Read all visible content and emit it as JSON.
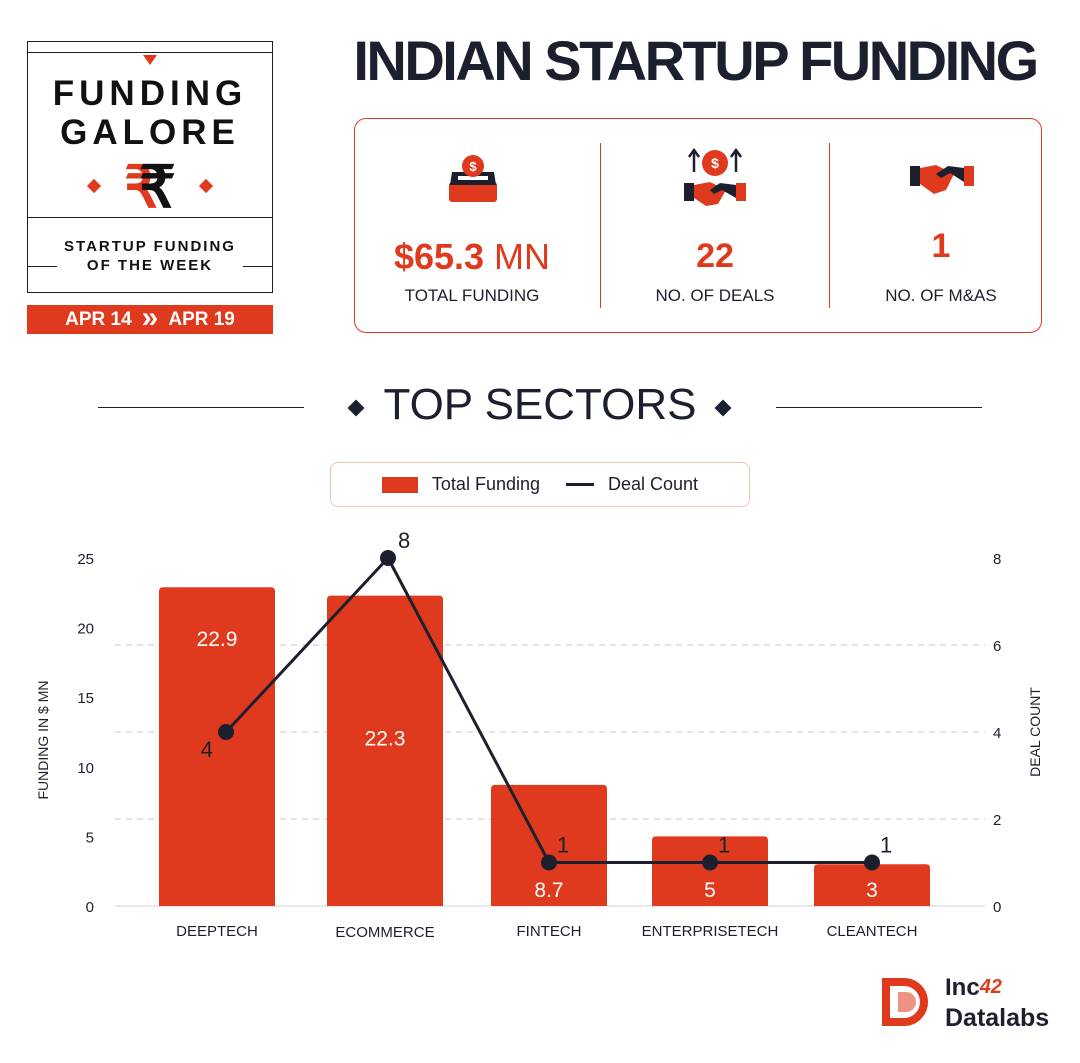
{
  "badge": {
    "line1": "FUNDING",
    "line2": "GALORE",
    "rupee": "₹",
    "subtitle1": "STARTUP FUNDING",
    "subtitle2": "OF THE WEEK",
    "date_from": "APR 14",
    "date_sep": "»",
    "date_to": "APR 19"
  },
  "title": "INDIAN STARTUP FUNDING",
  "stats": [
    {
      "icon": "money-box-icon",
      "value": "$65.3",
      "unit": "MN",
      "label": "TOTAL FUNDING"
    },
    {
      "icon": "deal-handshake-icon",
      "value": "22",
      "label": "NO. OF DEALS"
    },
    {
      "icon": "handshake-icon",
      "value": "1",
      "label": "NO. OF M&AS"
    }
  ],
  "section_title": "TOP SECTORS",
  "legend": {
    "bar": "Total Funding",
    "line": "Deal Count"
  },
  "colors": {
    "accent": "#e03a1e",
    "dark": "#1c1f2e",
    "grid": "#c9c9c9"
  },
  "chart_data": {
    "type": "bar",
    "categories": [
      "DEEPTECH",
      "ECOMMERCE",
      "FINTECH",
      "ENTERPRISETECH",
      "CLEANTECH"
    ],
    "series": [
      {
        "name": "Total Funding",
        "type": "bar",
        "axis": "left",
        "values": [
          22.9,
          22.3,
          8.7,
          5,
          3
        ]
      },
      {
        "name": "Deal Count",
        "type": "line",
        "axis": "right",
        "values": [
          4,
          8,
          1,
          1,
          1
        ]
      }
    ],
    "ylabel": "FUNDING IN $ MN",
    "ylabel_right": "DEAL COUNT",
    "ylim": [
      0,
      25
    ],
    "yticks": [
      0,
      5,
      10,
      15,
      20,
      25
    ],
    "ylim_right": [
      0,
      8
    ],
    "yticks_right": [
      0,
      2,
      4,
      6,
      8
    ],
    "grid": true,
    "legend_position": "top"
  },
  "logo": {
    "line1": "Inc",
    "line1_sup": "42",
    "line2": "Datalabs"
  }
}
